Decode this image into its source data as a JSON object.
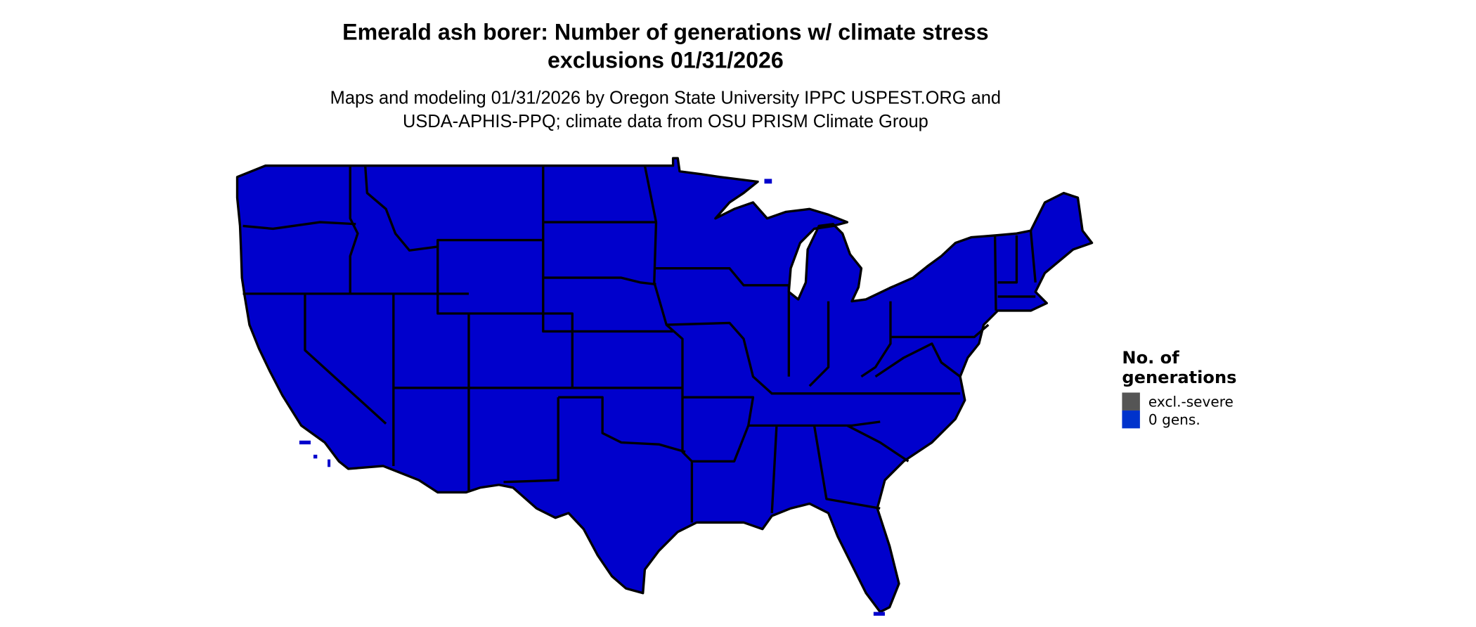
{
  "title": {
    "line1": "Emerald ash borer: Number of generations w/ climate stress",
    "line2": "exclusions 01/31/2026"
  },
  "subtitle": {
    "line1": "Maps and modeling 01/31/2026 by Oregon State University IPPC USPEST.ORG and",
    "line2": "USDA-APHIS-PPQ; climate data from OSU PRISM Climate Group"
  },
  "map": {
    "region": "Contiguous United States",
    "fill_color": "#0000cc",
    "border_color": "#000000"
  },
  "legend": {
    "title_line1": "No. of",
    "title_line2": "generations",
    "items": [
      {
        "label": "excl.-severe",
        "color": "#555555"
      },
      {
        "label": "0 gens.",
        "color": "#0033cc"
      }
    ]
  }
}
